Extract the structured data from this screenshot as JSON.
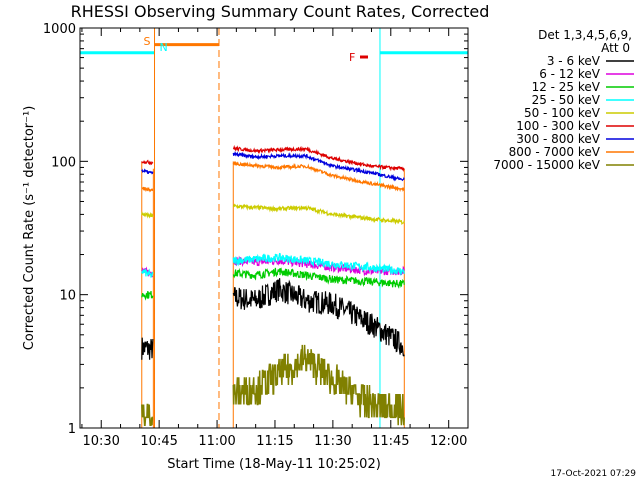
{
  "chart_data": {
    "type": "line",
    "title": "RHESSI Observing Summary Count Rates, Corrected",
    "xlabel": "Start Time (18-May-11 10:25:02)",
    "ylabel": "Corrected Count Rate (s⁻¹ detector⁻¹)",
    "ylog": true,
    "ylim": [
      1,
      1000
    ],
    "xlim_minutes_after_10_25": [
      -0.5,
      100
    ],
    "x_ticks": [
      {
        "label": "10:30",
        "minutes": 5
      },
      {
        "label": "10:45",
        "minutes": 20
      },
      {
        "label": "11:00",
        "minutes": 35
      },
      {
        "label": "11:15",
        "minutes": 50
      },
      {
        "label": "11:30",
        "minutes": 65
      },
      {
        "label": "11:45",
        "minutes": 80
      },
      {
        "label": "12:00",
        "minutes": 95
      }
    ],
    "y_ticks": [
      {
        "label": "1",
        "value": 1
      },
      {
        "label": "10",
        "value": 10
      },
      {
        "label": "100",
        "value": 100
      },
      {
        "label": "1000",
        "value": 1000
      }
    ],
    "legend_header": [
      "Det 1,3,4,5,6,9,",
      "Att 0"
    ],
    "legend_placement": "right",
    "timestamp": "17-Oct-2021 07:29",
    "flags": {
      "S": "S",
      "N": "N",
      "F": "F"
    },
    "data_segments_minutes": [
      [
        15.5,
        18.5
      ],
      [
        39.2,
        83.5
      ]
    ],
    "eclipse_minutes": [
      [
        -0.5,
        18.8
      ],
      [
        77.2,
        100
      ]
    ],
    "saa_minutes": [
      18.8,
      35.5
    ],
    "saa_level": 750,
    "series": [
      {
        "name": "3 - 6 keV",
        "color": "#000000",
        "values": [
          4.0,
          3.9,
          9.5,
          9.0,
          11.0,
          9.0,
          8.5,
          6.0,
          4.2
        ]
      },
      {
        "name": "6 - 12 keV",
        "color": "#dd00dd",
        "values": [
          15.0,
          14.5,
          18.0,
          17.5,
          18.0,
          17.0,
          16.0,
          15.0,
          15.0
        ]
      },
      {
        "name": "12 - 25 keV",
        "color": "#00cc00",
        "values": [
          10.0,
          10.0,
          14.5,
          14.0,
          15.0,
          14.0,
          13.0,
          12.5,
          12.0
        ]
      },
      {
        "name": "25 - 50 keV",
        "color": "#00ffff",
        "values": [
          15.0,
          14.0,
          18.0,
          18.5,
          19.0,
          18.0,
          17.0,
          16.0,
          15.0
        ]
      },
      {
        "name": "50 - 100 keV",
        "color": "#cccc00",
        "values": [
          40.0,
          39.0,
          46.0,
          45.0,
          44.0,
          45.0,
          40.0,
          37.0,
          35.0
        ]
      },
      {
        "name": "100 - 300 keV",
        "color": "#dd0000",
        "values": [
          100.0,
          98.0,
          125.0,
          120.0,
          122.0,
          124.0,
          105.0,
          92.0,
          88.0
        ]
      },
      {
        "name": "300 - 800 keV",
        "color": "#0000dd",
        "values": [
          85.0,
          82.0,
          113.0,
          108.0,
          110.0,
          110.0,
          92.0,
          82.0,
          73.0
        ]
      },
      {
        "name": "800 - 7000 keV",
        "color": "#ff7700",
        "values": [
          63.0,
          61.0,
          96.0,
          93.0,
          90.0,
          92.0,
          78.0,
          68.0,
          62.0
        ]
      },
      {
        "name": "7000 - 15000 keV",
        "color": "#808000",
        "values": [
          1.2,
          1.2,
          1.8,
          2.0,
          2.5,
          3.3,
          2.3,
          1.5,
          1.3
        ]
      }
    ],
    "x_minutes": [
      15.6,
      17.8,
      39.5,
      45.0,
      51.0,
      58.0,
      65.0,
      75.0,
      83.0
    ]
  }
}
